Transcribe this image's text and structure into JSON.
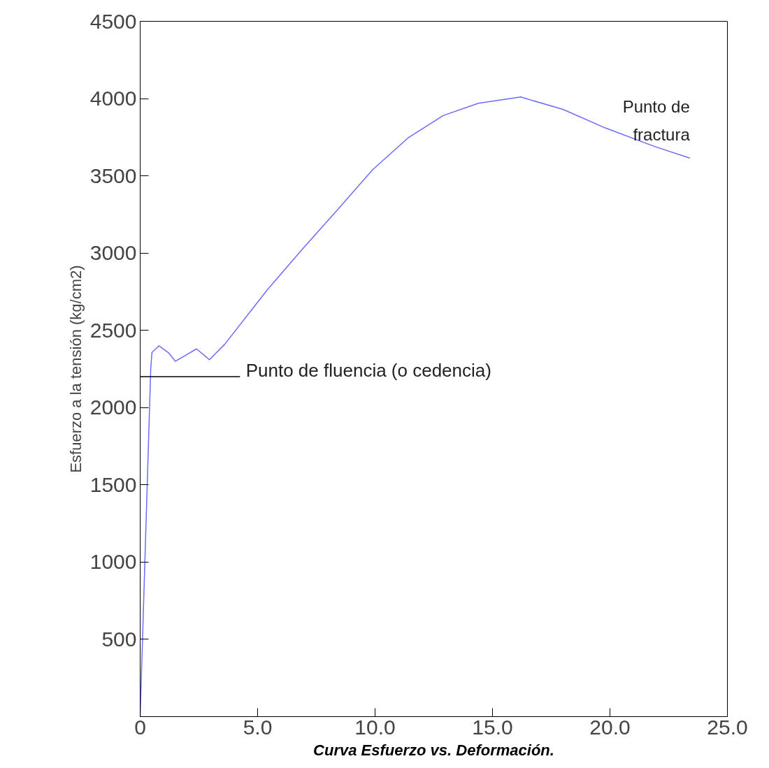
{
  "chart_data": {
    "type": "line",
    "title": "Curva Esfuerzo vs. Deformación.",
    "ylabel": "Esfuerzo a la tensión (kg/cm2)",
    "x": [
      0,
      0.2,
      0.45,
      0.5,
      0.8,
      1.2,
      1.5,
      1.95,
      2.4,
      2.95,
      3.6,
      5.4,
      6.9,
      8.4,
      9.9,
      11.4,
      12.9,
      14.4,
      16.2,
      18.0,
      19.8,
      21.9,
      23.4
    ],
    "series": [
      {
        "color": "#6b6bff",
        "values": [
          0,
          1000,
          2250,
          2356,
          2400,
          2356,
          2300,
          2340,
          2380,
          2310,
          2410,
          2760,
          3025,
          3280,
          3540,
          3745,
          3890,
          3970,
          4010,
          3930,
          3810,
          3690,
          3615
        ]
      }
    ],
    "xlim": [
      0,
      25
    ],
    "ylim": [
      0,
      4500
    ],
    "xticks": [
      {
        "value": 0,
        "label": "0"
      },
      {
        "value": 5,
        "label": "5.0"
      },
      {
        "value": 10,
        "label": "10.0"
      },
      {
        "value": 15,
        "label": "15.0"
      },
      {
        "value": 20,
        "label": "20.0"
      },
      {
        "value": 25,
        "label": "25.0"
      }
    ],
    "yticks": [
      500,
      1000,
      1500,
      2000,
      2500,
      3000,
      3500,
      4000,
      4500
    ],
    "ref_lines": [
      {
        "axis": "y",
        "value": 2200,
        "label": "Punto de fluencia (o cedencia)",
        "color": "#000000"
      }
    ],
    "annotations": [
      {
        "text": "Punto de\nfractura",
        "x": 23.4,
        "y": 3615
      }
    ],
    "grid": false,
    "marker": "none",
    "line_style": "solid"
  }
}
